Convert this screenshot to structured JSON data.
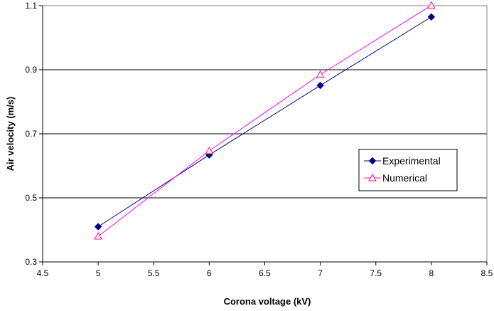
{
  "chart_data": {
    "type": "line",
    "xlabel": "Corona voltage (kV)",
    "ylabel": "Air velocity (m/s)",
    "xlim": [
      4.5,
      8.5
    ],
    "ylim": [
      0.3,
      1.1
    ],
    "xticks": [
      "4.5",
      "5",
      "5.5",
      "6",
      "6.5",
      "7",
      "7.5",
      "8",
      "8.5"
    ],
    "yticks": [
      "0.3",
      "0.5",
      "0.7",
      "0.9",
      "1.1"
    ],
    "grid": "horizontal major",
    "legend": "right",
    "series": [
      {
        "name": "Experimental",
        "color": "#000080",
        "marker": "diamond",
        "x": [
          5,
          6,
          7,
          8
        ],
        "y": [
          0.41,
          0.634,
          0.851,
          1.065
        ]
      },
      {
        "name": "Numerical",
        "color": "#ff00ff",
        "marker": "triangle",
        "marker_fill": "#ffff99",
        "x": [
          5,
          6,
          7,
          8
        ],
        "y": [
          0.38,
          0.647,
          0.885,
          1.101
        ]
      }
    ]
  }
}
